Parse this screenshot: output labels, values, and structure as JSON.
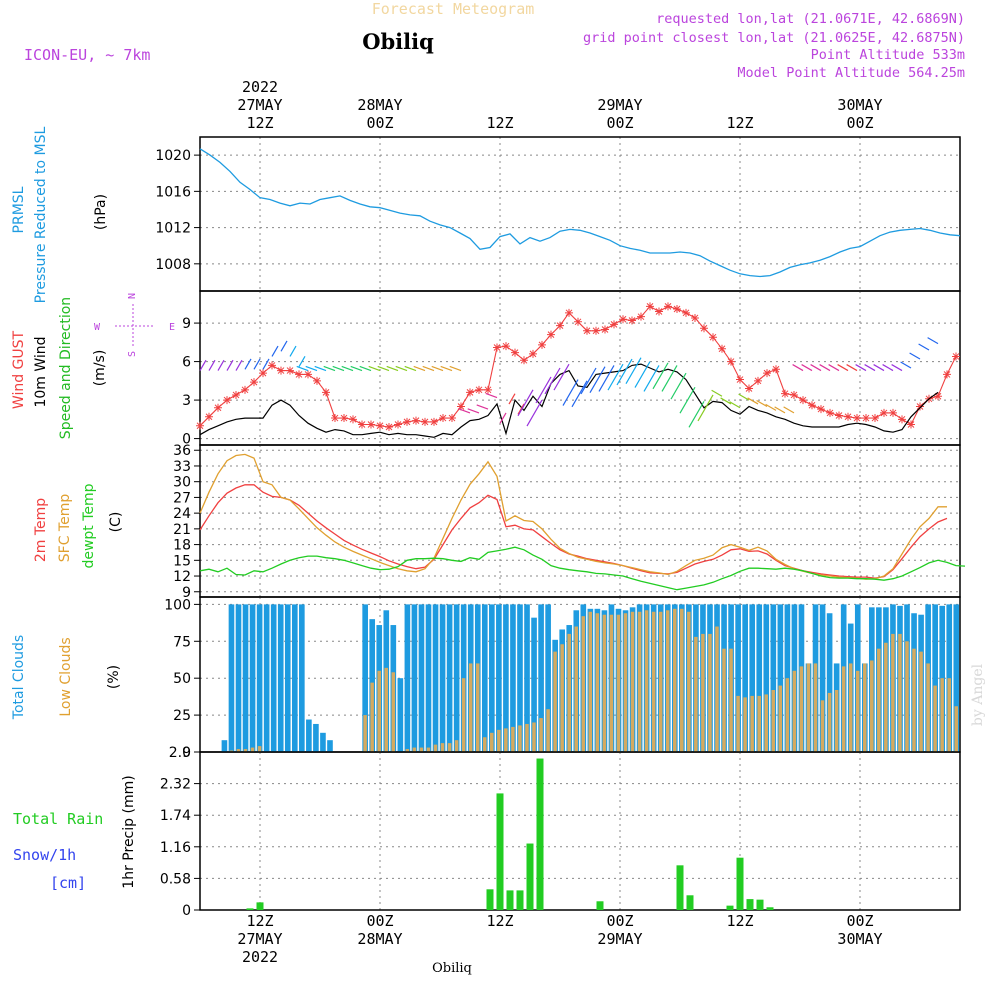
{
  "header": {
    "title": "Forecast Meteogram",
    "location": "Obiliq",
    "model": "ICON-EU, ~ 7km",
    "requested": "requested lon,lat (21.0671E, 42.6869N)",
    "grid_point": "grid point closest lon,lat (21.0625E, 42.6875N)",
    "point_alt": "Point Altitude 533m",
    "model_alt": "Model Point Altitude 564.25m",
    "footer_location": "Obiliq",
    "credit": "by Angel"
  },
  "colors": {
    "pressure": "#1e9be0",
    "gust": "#f04040",
    "wind": "#000000",
    "dir_label": "#22bb22",
    "temp": "#f04040",
    "sfc": "#e0a030",
    "dew": "#22cc22",
    "total_clouds": "#1e9be0",
    "low_clouds": "#d4aa60",
    "rain": "#22cc22",
    "snow": "#3344ee",
    "purple": "#bb44dd"
  },
  "chart_data": {
    "type": "meteogram",
    "time": {
      "start": "2022-05-27 03Z",
      "step_hours": 1,
      "top_ticks": [
        {
          "h": 9,
          "lines": [
            "2022",
            "27MAY",
            "12Z"
          ]
        },
        {
          "h": 21,
          "lines": [
            "28MAY",
            "00Z"
          ]
        },
        {
          "h": 33,
          "lines": [
            "12Z"
          ]
        },
        {
          "h": 45,
          "lines": [
            "29MAY",
            "00Z"
          ]
        },
        {
          "h": 57,
          "lines": [
            "12Z"
          ]
        },
        {
          "h": 69,
          "lines": [
            "30MAY",
            "00Z"
          ]
        }
      ],
      "bottom_ticks": [
        {
          "h": 9,
          "lines": [
            "12Z",
            "27MAY",
            "2022"
          ]
        },
        {
          "h": 21,
          "lines": [
            "00Z",
            "28MAY"
          ]
        },
        {
          "h": 33,
          "lines": [
            "12Z"
          ]
        },
        {
          "h": 45,
          "lines": [
            "00Z",
            "29MAY"
          ]
        },
        {
          "h": 57,
          "lines": [
            "12Z"
          ]
        },
        {
          "h": 69,
          "lines": [
            "00Z",
            "30MAY"
          ]
        }
      ],
      "range": [
        3,
        79
      ]
    },
    "panels": [
      {
        "id": "pressure",
        "labels": [
          "PRMSL",
          "Pressure Reduced to MSL"
        ],
        "unit": "(hPa)",
        "ylim": [
          1005,
          1022
        ],
        "ticks": [
          "1008",
          "1012",
          "1016",
          "1020"
        ],
        "series": [
          {
            "name": "PRMSL",
            "hours": [
              3,
              4,
              5,
              6,
              7,
              8,
              9,
              10,
              11,
              12,
              13,
              14,
              15,
              16,
              17,
              18,
              19,
              20,
              21,
              22,
              23,
              24,
              25,
              26,
              27,
              28,
              29,
              30,
              31,
              32,
              33,
              34,
              35,
              36,
              37,
              38,
              39,
              40,
              41,
              42,
              43,
              44,
              45,
              46,
              47,
              48,
              49,
              50,
              51,
              52,
              53,
              54,
              55,
              56,
              57,
              58,
              59,
              60,
              61,
              62,
              63,
              64,
              65,
              66,
              67,
              68,
              69,
              70,
              71,
              72,
              73,
              74,
              75,
              76,
              77,
              78,
              79
            ],
            "values": [
              1020.7,
              1020.0,
              1019.2,
              1018.2,
              1017.0,
              1016.2,
              1015.3,
              1015.1,
              1014.7,
              1014.4,
              1014.7,
              1014.6,
              1015.1,
              1015.3,
              1015.5,
              1015.0,
              1014.6,
              1014.3,
              1014.2,
              1013.9,
              1013.6,
              1013.4,
              1013.3,
              1012.7,
              1012.3,
              1012.0,
              1011.4,
              1010.8,
              1009.6,
              1009.8,
              1011.0,
              1011.3,
              1010.2,
              1010.9,
              1010.5,
              1010.9,
              1011.6,
              1011.8,
              1011.7,
              1011.4,
              1011.0,
              1010.6,
              1010.0,
              1009.7,
              1009.5,
              1009.2,
              1009.2,
              1009.2,
              1009.3,
              1009.2,
              1008.9,
              1008.3,
              1007.8,
              1007.3,
              1006.9,
              1006.7,
              1006.6,
              1006.7,
              1007.1,
              1007.6,
              1007.9,
              1008.1,
              1008.4,
              1008.8,
              1009.3,
              1009.7,
              1009.9,
              1010.5,
              1011.1,
              1011.5,
              1011.7,
              1011.8,
              1011.9,
              1011.7,
              1011.4,
              1011.2,
              1011.1
            ]
          }
        ]
      },
      {
        "id": "wind",
        "labels": [
          "Wind GUST",
          "10m Wind",
          "Speed and Direction"
        ],
        "unit": "(m/s)",
        "ylim": [
          -0.5,
          11.5
        ],
        "ticks": [
          "0",
          "3",
          "6",
          "9"
        ],
        "compass": {
          "n": "N",
          "s": "S",
          "w": "W",
          "e": "E"
        },
        "gust": [
          1.0,
          1.7,
          2.4,
          3.0,
          3.4,
          3.8,
          4.4,
          5.1,
          5.7,
          5.3,
          5.3,
          5.0,
          5.0,
          4.5,
          3.6,
          1.6,
          1.6,
          1.5,
          1.1,
          1.1,
          1.0,
          0.9,
          1.1,
          1.3,
          1.4,
          1.3,
          1.3,
          1.6,
          1.6,
          2.5,
          3.6,
          3.8,
          3.8,
          7.1,
          7.2,
          6.7,
          6.1,
          6.6,
          7.3,
          8.1,
          8.8,
          9.8,
          9.1,
          8.4,
          8.4,
          8.5,
          8.9,
          9.3,
          9.2,
          9.5,
          10.3,
          9.9,
          10.3,
          10.1,
          9.8,
          9.4,
          8.6,
          7.9,
          7.0,
          6.0,
          4.6,
          3.9,
          4.5,
          5.1,
          5.4,
          3.5,
          3.4,
          3.0,
          2.6,
          2.3,
          2.0,
          1.8,
          1.7,
          1.6,
          1.6,
          1.6,
          2.0,
          2.0,
          1.5,
          1.1,
          2.5,
          3.1,
          3.3,
          5.0,
          6.4
        ],
        "gust_hours_start": 3,
        "gust_step": 0.9,
        "wind": [
          0.3,
          0.7,
          1.0,
          1.3,
          1.5,
          1.6,
          1.6,
          1.6,
          2.6,
          3.0,
          2.6,
          1.8,
          1.2,
          0.8,
          0.5,
          0.7,
          0.6,
          0.3,
          0.3,
          0.4,
          0.5,
          0.3,
          0.4,
          0.3,
          0.3,
          0.2,
          0.1,
          0.4,
          0.3,
          0.9,
          1.4,
          1.5,
          1.8,
          2.7,
          0.4,
          3.0,
          2.2,
          3.3,
          2.5,
          4.3,
          5.0,
          5.3,
          4.1,
          4.0,
          5.0,
          5.1,
          5.2,
          5.3,
          5.7,
          5.8,
          5.5,
          5.2,
          5.4,
          5.2,
          4.6,
          3.5,
          2.4,
          2.9,
          2.8,
          2.2,
          1.9,
          2.5,
          2.2,
          2.0,
          1.7,
          1.5,
          1.2,
          1.0,
          0.9,
          0.9,
          0.9,
          0.9,
          1.1,
          1.2,
          1.1,
          0.9,
          0.6,
          0.5,
          0.7,
          1.7,
          2.4,
          3.1,
          3.6
        ]
      },
      {
        "id": "temp",
        "labels": [
          "2m Temp",
          "SFC Temp",
          "dewpt Temp"
        ],
        "unit": "(C)",
        "ylim": [
          8,
          37
        ],
        "ticks": [
          "9",
          "12",
          "15",
          "18",
          "21",
          "24",
          "27",
          "30",
          "33",
          "36"
        ],
        "t2m": [
          20.8,
          23.5,
          26.0,
          27.8,
          28.8,
          29.4,
          29.4,
          28.0,
          27.2,
          27.0,
          26.5,
          25.5,
          24.0,
          22.5,
          21.2,
          20.0,
          18.8,
          17.9,
          17.1,
          16.4,
          15.7,
          14.9,
          14.3,
          13.8,
          13.4,
          13.7,
          15.2,
          18.0,
          20.8,
          23.0,
          25.0,
          26.0,
          27.4,
          26.6,
          21.4,
          21.7,
          21.0,
          20.8,
          19.5,
          18.2,
          17.0,
          16.2,
          15.8,
          15.3,
          15.0,
          14.7,
          14.4,
          14.0,
          13.5,
          13.0,
          12.6,
          12.5,
          12.4,
          12.7,
          13.5,
          14.3,
          14.8,
          15.2,
          16.0,
          17.0,
          17.2,
          16.7,
          16.8,
          16.2,
          15.0,
          14.0,
          13.5,
          13.0,
          12.7,
          12.4,
          12.2,
          12.0,
          11.9,
          11.8,
          11.8,
          11.6,
          11.9,
          13.2,
          15.3,
          17.5,
          19.5,
          21.0,
          22.3,
          23.0
        ],
        "sfc": [
          24.0,
          28.0,
          31.5,
          34.0,
          35.0,
          35.2,
          34.5,
          30.0,
          29.4,
          27.0,
          26.5,
          24.8,
          23.0,
          21.2,
          19.8,
          18.5,
          17.5,
          16.7,
          16.0,
          15.3,
          14.6,
          14.0,
          13.4,
          13.0,
          12.8,
          13.4,
          15.4,
          19.2,
          23.0,
          26.5,
          29.5,
          31.5,
          33.8,
          31.0,
          22.5,
          23.5,
          22.6,
          22.4,
          21.0,
          19.0,
          17.3,
          16.3,
          15.6,
          15.2,
          14.8,
          14.5,
          14.3,
          14.0,
          13.6,
          13.2,
          12.8,
          12.6,
          12.3,
          12.9,
          14.0,
          15.0,
          15.4,
          16.0,
          17.4,
          18.0,
          17.5,
          16.9,
          17.5,
          16.8,
          15.2,
          14.2,
          13.4,
          12.9,
          12.5,
          12.2,
          12.0,
          11.8,
          11.7,
          11.6,
          11.4,
          11.5,
          12.0,
          13.4,
          16.2,
          19.0,
          21.4,
          23.0,
          25.2,
          25.2
        ],
        "dew": [
          13.0,
          13.3,
          12.8,
          13.5,
          12.3,
          12.2,
          13.0,
          12.8,
          13.5,
          14.3,
          15.0,
          15.5,
          15.8,
          15.8,
          15.5,
          15.3,
          15.0,
          14.5,
          14.0,
          13.5,
          13.2,
          13.3,
          13.8,
          15.0,
          15.3,
          15.3,
          15.4,
          15.3,
          15.0,
          14.8,
          15.5,
          15.2,
          16.5,
          16.8,
          17.1,
          17.5,
          17.0,
          16.0,
          15.2,
          14.0,
          13.5,
          13.2,
          13.0,
          12.8,
          12.5,
          12.4,
          12.2,
          12.0,
          11.5,
          11.0,
          10.6,
          10.2,
          9.8,
          9.4,
          9.7,
          10.0,
          10.3,
          10.8,
          11.5,
          12.1,
          12.9,
          13.5,
          13.5,
          13.4,
          13.3,
          13.5,
          13.3,
          13.0,
          12.5,
          12.0,
          11.7,
          11.6,
          11.6,
          11.5,
          11.5,
          11.4,
          11.2,
          11.5,
          12.0,
          12.8,
          13.6,
          14.5,
          15.0,
          14.6,
          14.0,
          13.9
        ],
        "series_step_h": 0.9
      },
      {
        "id": "clouds",
        "labels": [
          "Total Clouds",
          "Low Clouds"
        ],
        "unit": "(%)",
        "ylim": [
          0,
          105
        ],
        "ticks": [
          "0",
          "25",
          "50",
          "75",
          "100"
        ],
        "total": [
          0,
          0,
          0,
          8,
          100,
          100,
          100,
          100,
          100,
          100,
          100,
          100,
          100,
          100,
          100,
          22,
          19,
          13,
          8,
          0,
          0,
          0,
          0,
          100,
          90,
          86,
          96,
          86,
          50,
          100,
          100,
          100,
          100,
          100,
          100,
          100,
          100,
          100,
          100,
          100,
          100,
          100,
          100,
          100,
          100,
          100,
          100,
          91,
          100,
          100,
          76,
          83,
          86,
          96,
          100,
          97,
          97,
          96,
          100,
          97,
          96,
          98,
          100,
          100,
          100,
          100,
          100,
          100,
          100,
          100,
          100,
          100,
          100,
          100,
          100,
          100,
          100,
          100,
          100,
          100,
          100,
          100,
          100,
          100,
          100,
          100,
          60,
          100,
          100,
          94,
          60,
          100,
          87,
          100,
          60,
          98,
          98,
          98,
          100,
          99,
          100,
          94,
          93,
          100,
          100,
          99,
          100,
          100
        ],
        "low": [
          0,
          0,
          0,
          0,
          1,
          2,
          2,
          3,
          4,
          0,
          0,
          0,
          0,
          0,
          0,
          0,
          0,
          0,
          0,
          0,
          0,
          0,
          0,
          25,
          47,
          55,
          57,
          54,
          0,
          2,
          3,
          3,
          3,
          5,
          6,
          6,
          8,
          50,
          60,
          60,
          10,
          13,
          15,
          16,
          17,
          18,
          19,
          20,
          23,
          29,
          68,
          73,
          80,
          85,
          92,
          95,
          94,
          93,
          93,
          93,
          94,
          95,
          95,
          96,
          95,
          95,
          96,
          97,
          97,
          95,
          78,
          80,
          80,
          85,
          70,
          70,
          38,
          37,
          38,
          38,
          39,
          42,
          45,
          50,
          55,
          58,
          60,
          60,
          35,
          40,
          42,
          58,
          60,
          55,
          60,
          62,
          70,
          74,
          80,
          80,
          75,
          70,
          68,
          60,
          45,
          50,
          50,
          31
        ],
        "bar_step_h": 0.7
      },
      {
        "id": "precip",
        "labels": [
          "Total Rain",
          "Snow/1h",
          "[cm]"
        ],
        "unit": "1hr Precip (mm)",
        "ylim": [
          0,
          2.9
        ],
        "ticks": [
          "0",
          "0.58",
          "1.16",
          "1.74",
          "2.32",
          "2.9"
        ],
        "rain": [
          {
            "h": 8.0,
            "v": 0.03
          },
          {
            "h": 9.0,
            "v": 0.14
          },
          {
            "h": 32.0,
            "v": 0.38
          },
          {
            "h": 33.0,
            "v": 2.14
          },
          {
            "h": 34.0,
            "v": 0.36
          },
          {
            "h": 35.0,
            "v": 0.36
          },
          {
            "h": 36.0,
            "v": 1.22
          },
          {
            "h": 37.0,
            "v": 2.78
          },
          {
            "h": 43.0,
            "v": 0.16
          },
          {
            "h": 51.0,
            "v": 0.82
          },
          {
            "h": 52.0,
            "v": 0.27
          },
          {
            "h": 56.0,
            "v": 0.08
          },
          {
            "h": 57.0,
            "v": 0.96
          },
          {
            "h": 58.0,
            "v": 0.2
          },
          {
            "h": 59.0,
            "v": 0.19
          },
          {
            "h": 60.0,
            "v": 0.05
          }
        ]
      }
    ]
  }
}
